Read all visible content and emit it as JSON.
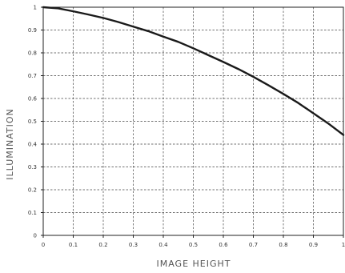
{
  "chart_data": {
    "type": "line",
    "title": "",
    "xlabel": "IMAGE HEIGHT",
    "ylabel": "ILLUMINATION",
    "xlim": [
      0,
      1
    ],
    "ylim": [
      0,
      1
    ],
    "x_ticks": [
      "0",
      "0.1",
      "0.2",
      "0.3",
      "0.4",
      "0.5",
      "0.6",
      "0.7",
      "0.8",
      "0.9",
      "1"
    ],
    "y_ticks": [
      "0",
      "0.1",
      "0.2",
      "0.3",
      "0.4",
      "0.5",
      "0.6",
      "0.7",
      "0.8",
      "0.9",
      "1"
    ],
    "grid": true,
    "grid_style": "dashed",
    "legend": "none",
    "series": [
      {
        "color": "#1a1a1a",
        "x": [
          0,
          0.05,
          0.1,
          0.15,
          0.2,
          0.25,
          0.3,
          0.35,
          0.4,
          0.45,
          0.5,
          0.55,
          0.6,
          0.65,
          0.7,
          0.75,
          0.8,
          0.85,
          0.9,
          0.95,
          1
        ],
        "y": [
          1,
          0.995,
          0.982,
          0.968,
          0.953,
          0.935,
          0.915,
          0.895,
          0.871,
          0.848,
          0.82,
          0.79,
          0.76,
          0.729,
          0.695,
          0.658,
          0.62,
          0.58,
          0.535,
          0.49,
          0.44
        ]
      }
    ]
  }
}
